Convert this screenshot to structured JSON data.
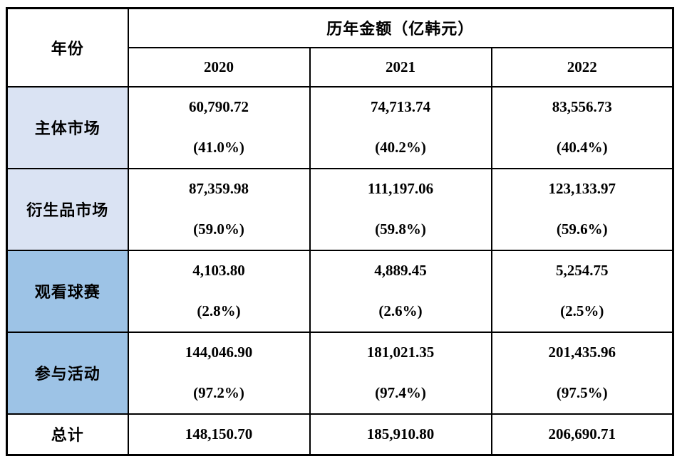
{
  "table": {
    "year_header": "年份",
    "amount_group_header": "历年金额（亿韩元）",
    "years": [
      "2020",
      "2021",
      "2022"
    ],
    "rows": [
      {
        "label": "主体市场",
        "shade": "light",
        "values": [
          "60,790.72",
          "74,713.74",
          "83,556.73"
        ],
        "pcts": [
          "(41.0%)",
          "(40.2%)",
          "(40.4%)"
        ]
      },
      {
        "label": "衍生品市场",
        "shade": "light",
        "values": [
          "87,359.98",
          "111,197.06",
          "123,133.97"
        ],
        "pcts": [
          "(59.0%)",
          "(59.8%)",
          "(59.6%)"
        ]
      },
      {
        "label": "观看球赛",
        "shade": "dark",
        "values": [
          "4,103.80",
          "4,889.45",
          "5,254.75"
        ],
        "pcts": [
          "(2.8%)",
          "(2.6%)",
          "(2.5%)"
        ]
      },
      {
        "label": "参与活动",
        "shade": "dark",
        "values": [
          "144,046.90",
          "181,021.35",
          "201,435.96"
        ],
        "pcts": [
          "(97.2%)",
          "(97.4%)",
          "(97.5%)"
        ]
      }
    ],
    "total": {
      "label": "总计",
      "values": [
        "148,150.70",
        "185,910.80",
        "206,690.71"
      ]
    }
  },
  "colors": {
    "light_row_fill": "#dae3f3",
    "dark_row_fill": "#9dc3e6",
    "border": "#000000",
    "text": "#000000",
    "background": "#ffffff"
  },
  "chart_data": {
    "type": "table",
    "title": "历年金额（亿韩元）",
    "columns": [
      "年份",
      "2020",
      "2021",
      "2022"
    ],
    "rows": [
      [
        "主体市场",
        "60,790.72 (41.0%)",
        "74,713.74 (40.2%)",
        "83,556.73 (40.4%)"
      ],
      [
        "衍生品市场",
        "87,359.98 (59.0%)",
        "111,197.06 (59.8%)",
        "123,133.97 (59.6%)"
      ],
      [
        "观看球赛",
        "4,103.80 (2.8%)",
        "4,889.45 (2.6%)",
        "5,254.75 (2.5%)"
      ],
      [
        "参与活动",
        "144,046.90 (97.2%)",
        "181,021.35 (97.4%)",
        "201,435.96 (97.5%)"
      ],
      [
        "总计",
        "148,150.70",
        "185,910.80",
        "206,690.71"
      ]
    ]
  }
}
